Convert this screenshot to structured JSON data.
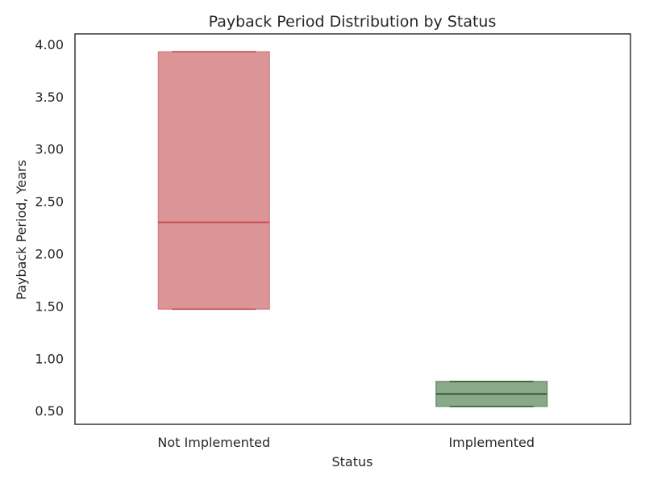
{
  "chart_data": {
    "type": "box",
    "title": "Payback Period Distribution by Status",
    "xlabel": "Status",
    "ylabel": "Payback Period, Years",
    "ylim": [
      0.37,
      4.1
    ],
    "yticks": [
      "0.50",
      "1.00",
      "1.50",
      "2.00",
      "2.50",
      "3.00",
      "3.50",
      "4.00"
    ],
    "categories": [
      "Not Implemented",
      "Implemented"
    ],
    "grid": false,
    "boxes": [
      {
        "category": "Not Implemented",
        "min": 1.47,
        "q1": 1.47,
        "median": 2.3,
        "q3": 3.93,
        "max": 3.93,
        "fill_color": "#dc9597",
        "edge_color": "#c54e52"
      },
      {
        "category": "Implemented",
        "min": 0.54,
        "q1": 0.54,
        "median": 0.66,
        "q3": 0.78,
        "max": 0.78,
        "fill_color": "#8aa98a",
        "edge_color": "#2f5e2f"
      }
    ]
  }
}
